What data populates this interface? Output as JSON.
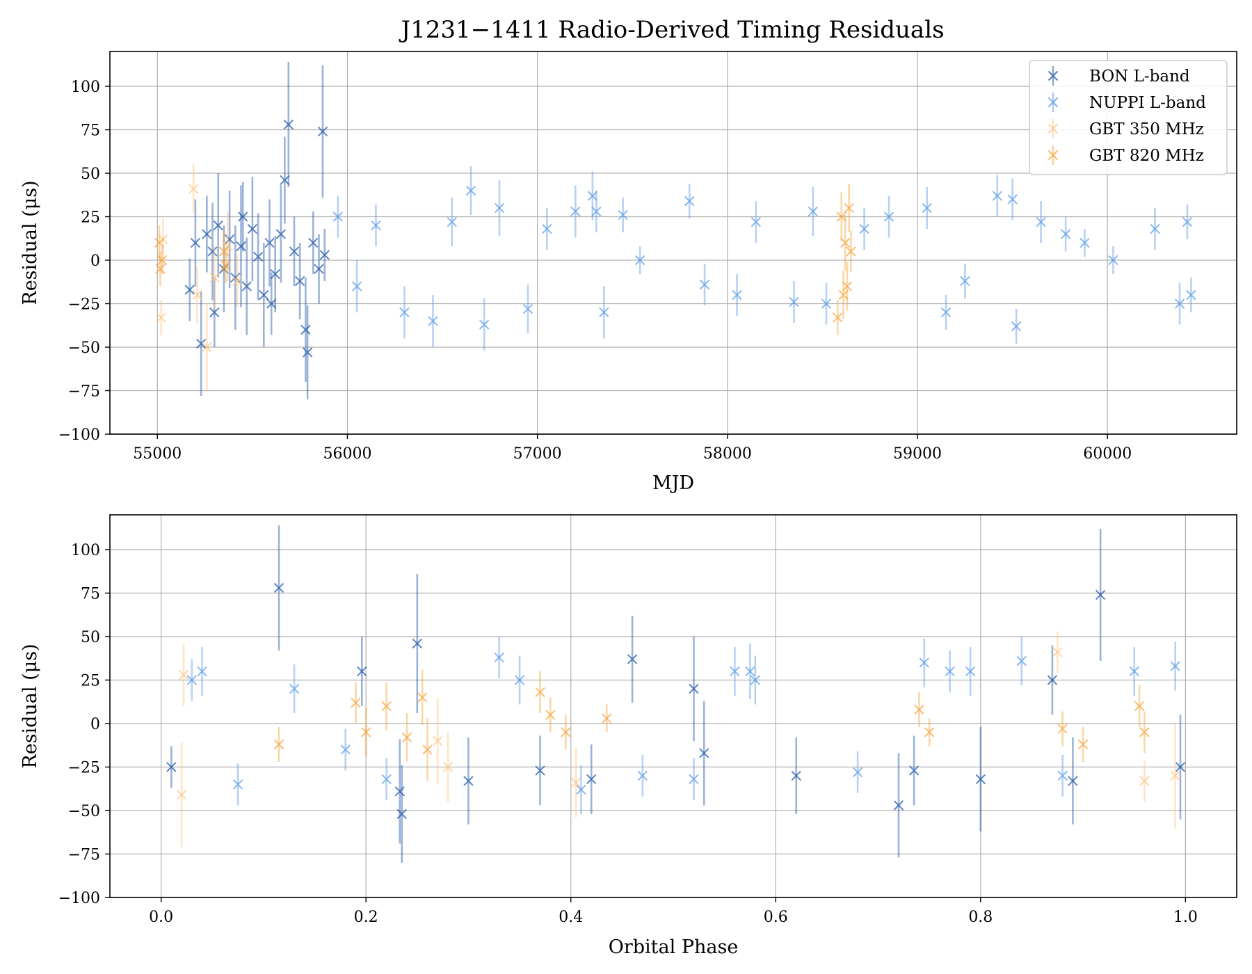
{
  "chart_data": [
    {
      "type": "scatter",
      "title": "J1231−1411 Radio-Derived Timing Residuals",
      "xlabel": "MJD",
      "ylabel": "Residual (μs)",
      "xlim": [
        54750,
        60680
      ],
      "ylim": [
        -100,
        120
      ],
      "xticks": [
        55000,
        56000,
        57000,
        58000,
        59000,
        60000
      ],
      "xtick_labels": [
        "55000",
        "56000",
        "57000",
        "58000",
        "59000",
        "60000"
      ],
      "yticks": [
        -100,
        -75,
        -50,
        -25,
        0,
        25,
        50,
        75,
        100
      ],
      "ytick_labels": [
        "−100",
        "−75",
        "−50",
        "−25",
        "0",
        "25",
        "50",
        "75",
        "100"
      ],
      "grid": true,
      "legend_position": "top-right",
      "marker": "x with vertical error bars",
      "series": [
        {
          "name": "BON L-band",
          "color": "#1f56a8",
          "points": [
            [
              55170,
              -17,
              18
            ],
            [
              55200,
              10,
              25
            ],
            [
              55230,
              -48,
              30
            ],
            [
              55260,
              15,
              22
            ],
            [
              55290,
              5,
              28
            ],
            [
              55320,
              20,
              30
            ],
            [
              55350,
              -5,
              25
            ],
            [
              55380,
              12,
              28
            ],
            [
              55410,
              -10,
              30
            ],
            [
              55440,
              8,
              35
            ],
            [
              55470,
              -15,
              28
            ],
            [
              55500,
              18,
              30
            ],
            [
              55530,
              2,
              25
            ],
            [
              55560,
              -20,
              30
            ],
            [
              55590,
              10,
              25
            ],
            [
              55620,
              -8,
              22
            ],
            [
              55650,
              15,
              28
            ],
            [
              55670,
              46,
              25
            ],
            [
              55690,
              78,
              36
            ],
            [
              55720,
              5,
              20
            ],
            [
              55750,
              -12,
              22
            ],
            [
              55780,
              -40,
              30
            ],
            [
              55790,
              -53,
              27
            ],
            [
              55820,
              10,
              18
            ],
            [
              55850,
              -5,
              20
            ],
            [
              55870,
              74,
              38
            ],
            [
              55880,
              3,
              15
            ],
            [
              55300,
              -30,
              20
            ],
            [
              55450,
              25,
              20
            ],
            [
              55600,
              -25,
              18
            ]
          ]
        },
        {
          "name": "NUPPI L-band",
          "color": "#5b9be6",
          "points": [
            [
              55950,
              25,
              12
            ],
            [
              56050,
              -15,
              15
            ],
            [
              56150,
              20,
              12
            ],
            [
              56300,
              -30,
              15
            ],
            [
              56450,
              -35,
              15
            ],
            [
              56550,
              22,
              14
            ],
            [
              56650,
              40,
              14
            ],
            [
              56720,
              -37,
              15
            ],
            [
              56800,
              30,
              16
            ],
            [
              56950,
              -28,
              14
            ],
            [
              57050,
              18,
              12
            ],
            [
              57200,
              28,
              15
            ],
            [
              57290,
              37,
              14
            ],
            [
              57310,
              28,
              12
            ],
            [
              57350,
              -30,
              15
            ],
            [
              57450,
              26,
              10
            ],
            [
              57540,
              0,
              8
            ],
            [
              57800,
              34,
              10
            ],
            [
              57880,
              -14,
              12
            ],
            [
              58050,
              -20,
              12
            ],
            [
              58150,
              22,
              12
            ],
            [
              58350,
              -24,
              12
            ],
            [
              58450,
              28,
              14
            ],
            [
              58520,
              -25,
              12
            ],
            [
              58720,
              18,
              12
            ],
            [
              58850,
              25,
              12
            ],
            [
              59050,
              30,
              12
            ],
            [
              59150,
              -30,
              10
            ],
            [
              59250,
              -12,
              10
            ],
            [
              59420,
              37,
              12
            ],
            [
              59500,
              35,
              12
            ],
            [
              59520,
              -38,
              10
            ],
            [
              59650,
              22,
              12
            ],
            [
              59780,
              15,
              10
            ],
            [
              59880,
              10,
              8
            ],
            [
              60030,
              0,
              8
            ],
            [
              60250,
              18,
              12
            ],
            [
              60380,
              -25,
              12
            ],
            [
              60420,
              22,
              10
            ],
            [
              60440,
              -20,
              10
            ]
          ]
        },
        {
          "name": "GBT 350 MHz",
          "color": "#ffc485",
          "points": [
            [
              55020,
              -33,
              10
            ],
            [
              55030,
              12,
              12
            ],
            [
              55190,
              41,
              14
            ],
            [
              55210,
              -20,
              16
            ],
            [
              55260,
              -50,
              25
            ],
            [
              55300,
              -10,
              18
            ],
            [
              55370,
              8,
              20
            ],
            [
              55420,
              -12,
              15
            ]
          ]
        },
        {
          "name": "GBT 820 MHz",
          "color": "#f7a43c",
          "points": [
            [
              55010,
              10,
              10
            ],
            [
              55015,
              -5,
              10
            ],
            [
              55025,
              0,
              8
            ],
            [
              55350,
              5,
              12
            ],
            [
              55360,
              -3,
              10
            ],
            [
              58580,
              -33,
              10
            ],
            [
              58600,
              25,
              14
            ],
            [
              58610,
              -20,
              14
            ],
            [
              58620,
              10,
              16
            ],
            [
              58630,
              -15,
              14
            ],
            [
              58640,
              30,
              14
            ],
            [
              58650,
              5,
              12
            ]
          ]
        }
      ]
    },
    {
      "type": "scatter",
      "title": "",
      "xlabel": "Orbital Phase",
      "ylabel": "Residual (μs)",
      "xlim": [
        -0.05,
        1.05
      ],
      "ylim": [
        -100,
        120
      ],
      "xticks": [
        0.0,
        0.2,
        0.4,
        0.6,
        0.8,
        1.0
      ],
      "xtick_labels": [
        "0.0",
        "0.2",
        "0.4",
        "0.6",
        "0.8",
        "1.0"
      ],
      "yticks": [
        -100,
        -75,
        -50,
        -25,
        0,
        25,
        50,
        75,
        100
      ],
      "ytick_labels": [
        "−100",
        "−75",
        "−50",
        "−25",
        "0",
        "25",
        "50",
        "75",
        "100"
      ],
      "grid": true,
      "marker": "x with vertical error bars",
      "series": [
        {
          "name": "BON L-band",
          "color": "#1f56a8",
          "points": [
            [
              0.01,
              -25,
              12
            ],
            [
              0.115,
              78,
              36
            ],
            [
              0.196,
              30,
              20
            ],
            [
              0.233,
              -39,
              30
            ],
            [
              0.235,
              -52,
              28
            ],
            [
              0.25,
              46,
              40
            ],
            [
              0.3,
              -33,
              25
            ],
            [
              0.37,
              -27,
              20
            ],
            [
              0.46,
              37,
              25
            ],
            [
              0.52,
              20,
              30
            ],
            [
              0.53,
              -17,
              30
            ],
            [
              0.62,
              -30,
              22
            ],
            [
              0.72,
              -47,
              30
            ],
            [
              0.735,
              -27,
              20
            ],
            [
              0.8,
              -32,
              30
            ],
            [
              0.87,
              25,
              20
            ],
            [
              0.89,
              -33,
              25
            ],
            [
              0.917,
              74,
              38
            ],
            [
              0.995,
              -25,
              30
            ],
            [
              0.42,
              -32,
              20
            ]
          ]
        },
        {
          "name": "NUPPI L-band",
          "color": "#5b9be6",
          "points": [
            [
              0.03,
              25,
              12
            ],
            [
              0.04,
              30,
              14
            ],
            [
              0.075,
              -35,
              12
            ],
            [
              0.13,
              20,
              14
            ],
            [
              0.18,
              -15,
              12
            ],
            [
              0.22,
              -32,
              12
            ],
            [
              0.33,
              38,
              12
            ],
            [
              0.35,
              25,
              14
            ],
            [
              0.41,
              -38,
              14
            ],
            [
              0.47,
              -30,
              12
            ],
            [
              0.52,
              -32,
              12
            ],
            [
              0.56,
              30,
              14
            ],
            [
              0.575,
              30,
              16
            ],
            [
              0.58,
              25,
              14
            ],
            [
              0.68,
              -28,
              12
            ],
            [
              0.745,
              35,
              14
            ],
            [
              0.77,
              30,
              12
            ],
            [
              0.79,
              30,
              14
            ],
            [
              0.84,
              36,
              14
            ],
            [
              0.88,
              -30,
              12
            ],
            [
              0.95,
              30,
              14
            ],
            [
              0.99,
              33,
              14
            ]
          ]
        },
        {
          "name": "GBT 350 MHz",
          "color": "#ffc485",
          "points": [
            [
              0.02,
              -41,
              30
            ],
            [
              0.022,
              28,
              18
            ],
            [
              0.27,
              -10,
              25
            ],
            [
              0.28,
              -25,
              20
            ],
            [
              0.405,
              -34,
              20
            ],
            [
              0.875,
              41,
              12
            ],
            [
              0.96,
              -33,
              12
            ],
            [
              0.99,
              -30,
              30
            ]
          ]
        },
        {
          "name": "GBT 820 MHz",
          "color": "#f7a43c",
          "points": [
            [
              0.115,
              -12,
              10
            ],
            [
              0.19,
              12,
              12
            ],
            [
              0.2,
              -5,
              14
            ],
            [
              0.22,
              10,
              14
            ],
            [
              0.24,
              -8,
              14
            ],
            [
              0.255,
              15,
              16
            ],
            [
              0.26,
              -15,
              18
            ],
            [
              0.37,
              18,
              12
            ],
            [
              0.38,
              5,
              10
            ],
            [
              0.395,
              -5,
              10
            ],
            [
              0.435,
              3,
              8
            ],
            [
              0.74,
              8,
              10
            ],
            [
              0.75,
              -5,
              8
            ],
            [
              0.88,
              -3,
              10
            ],
            [
              0.9,
              -12,
              10
            ],
            [
              0.955,
              10,
              12
            ],
            [
              0.96,
              -5,
              12
            ]
          ]
        }
      ]
    }
  ]
}
